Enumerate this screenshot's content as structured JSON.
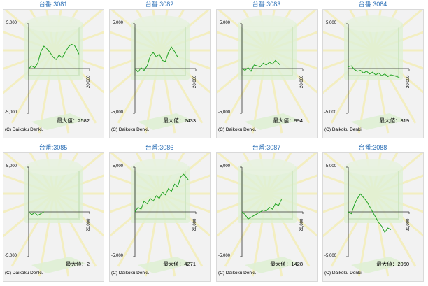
{
  "copyright": "(C) Daikoku Denki.",
  "max_prefix": "最大値：",
  "y_ticks": [
    "5,000",
    "-5,000"
  ],
  "x_tick": "20,000",
  "colors": {
    "line": "#22a322",
    "title": "#2b6fb6",
    "axis": "#333333",
    "panel_bg": "#f2f2f2"
  },
  "chart_data": [
    {
      "type": "line",
      "title": "台番:3081",
      "max_label": "2582",
      "ylim": [
        -5000,
        5000
      ],
      "xlim": [
        0,
        20000
      ],
      "x": [
        0,
        1000,
        2000,
        3000,
        4000,
        5000,
        6000,
        7000,
        8000,
        9000,
        10000,
        11000,
        12000,
        13000,
        14000,
        15000,
        16000,
        16500
      ],
      "y": [
        0,
        300,
        100,
        600,
        1900,
        2500,
        2200,
        1800,
        1300,
        1000,
        1500,
        1200,
        1800,
        2400,
        2700,
        2600,
        2000,
        1600
      ]
    },
    {
      "type": "line",
      "title": "台番:3082",
      "max_label": "2433",
      "ylim": [
        -5000,
        5000
      ],
      "xlim": [
        0,
        20000
      ],
      "x": [
        0,
        1000,
        2000,
        3000,
        4000,
        5000,
        6000,
        7000,
        8000,
        9000,
        10000,
        11000,
        12000,
        13000,
        14000
      ],
      "y": [
        0,
        -400,
        100,
        -200,
        300,
        1400,
        1800,
        1300,
        1600,
        900,
        800,
        1800,
        2400,
        1900,
        1300
      ]
    },
    {
      "type": "line",
      "title": "台番:3083",
      "max_label": "994",
      "ylim": [
        -5000,
        5000
      ],
      "xlim": [
        0,
        20000
      ],
      "x": [
        0,
        1000,
        2000,
        3000,
        4000,
        5000,
        6000,
        7000,
        8000,
        9000,
        10000,
        11000,
        12000,
        12500
      ],
      "y": [
        0,
        -200,
        100,
        -300,
        400,
        300,
        200,
        600,
        400,
        700,
        500,
        900,
        600,
        400
      ]
    },
    {
      "type": "line",
      "title": "台番:3084",
      "max_label": "319",
      "ylim": [
        -5000,
        5000
      ],
      "xlim": [
        0,
        20000
      ],
      "x": [
        0,
        1000,
        2000,
        3000,
        4000,
        5000,
        6000,
        7000,
        8000,
        9000,
        10000,
        11000,
        12000,
        13000,
        14000,
        15000,
        16000,
        16800
      ],
      "y": [
        200,
        300,
        -100,
        -300,
        -200,
        -500,
        -300,
        -600,
        -400,
        -700,
        -500,
        -800,
        -600,
        -900,
        -700,
        -800,
        -900,
        -1000
      ]
    },
    {
      "type": "line",
      "title": "台番:3085",
      "max_label": "2",
      "ylim": [
        -5000,
        5000
      ],
      "xlim": [
        0,
        20000
      ],
      "x": [
        0,
        1000,
        2000,
        3000,
        4000,
        5000
      ],
      "y": [
        0,
        -300,
        -100,
        -400,
        -200,
        0
      ]
    },
    {
      "type": "line",
      "title": "台番:3086",
      "max_label": "4271",
      "ylim": [
        -5000,
        5000
      ],
      "xlim": [
        0,
        20000
      ],
      "x": [
        0,
        1000,
        2000,
        3000,
        4000,
        5000,
        6000,
        7000,
        8000,
        9000,
        10000,
        11000,
        12000,
        13000,
        14000,
        15000,
        16000,
        17000,
        17500
      ],
      "y": [
        0,
        500,
        300,
        1200,
        900,
        1500,
        1200,
        1800,
        1500,
        2200,
        1900,
        2600,
        2300,
        3100,
        2800,
        3900,
        4200,
        3800,
        3600
      ]
    },
    {
      "type": "line",
      "title": "台番:3087",
      "max_label": "1428",
      "ylim": [
        -5000,
        5000
      ],
      "xlim": [
        0,
        20000
      ],
      "x": [
        0,
        1000,
        2000,
        3000,
        4000,
        5000,
        6000,
        7000,
        8000,
        9000,
        10000,
        11000,
        12000,
        13000
      ],
      "y": [
        0,
        -300,
        -800,
        -600,
        -400,
        -200,
        0,
        200,
        100,
        500,
        300,
        900,
        700,
        1400
      ]
    },
    {
      "type": "line",
      "title": "台番:3088",
      "max_label": "2050",
      "ylim": [
        -5000,
        5000
      ],
      "xlim": [
        0,
        20000
      ],
      "x": [
        0,
        1000,
        2000,
        3000,
        4000,
        5000,
        6000,
        7000,
        8000,
        9000,
        10000,
        11000,
        12000,
        13000,
        14000
      ],
      "y": [
        0,
        -200,
        800,
        1500,
        2000,
        1600,
        1200,
        600,
        0,
        -600,
        -1200,
        -1600,
        -2300,
        -1800,
        -2000
      ]
    }
  ]
}
